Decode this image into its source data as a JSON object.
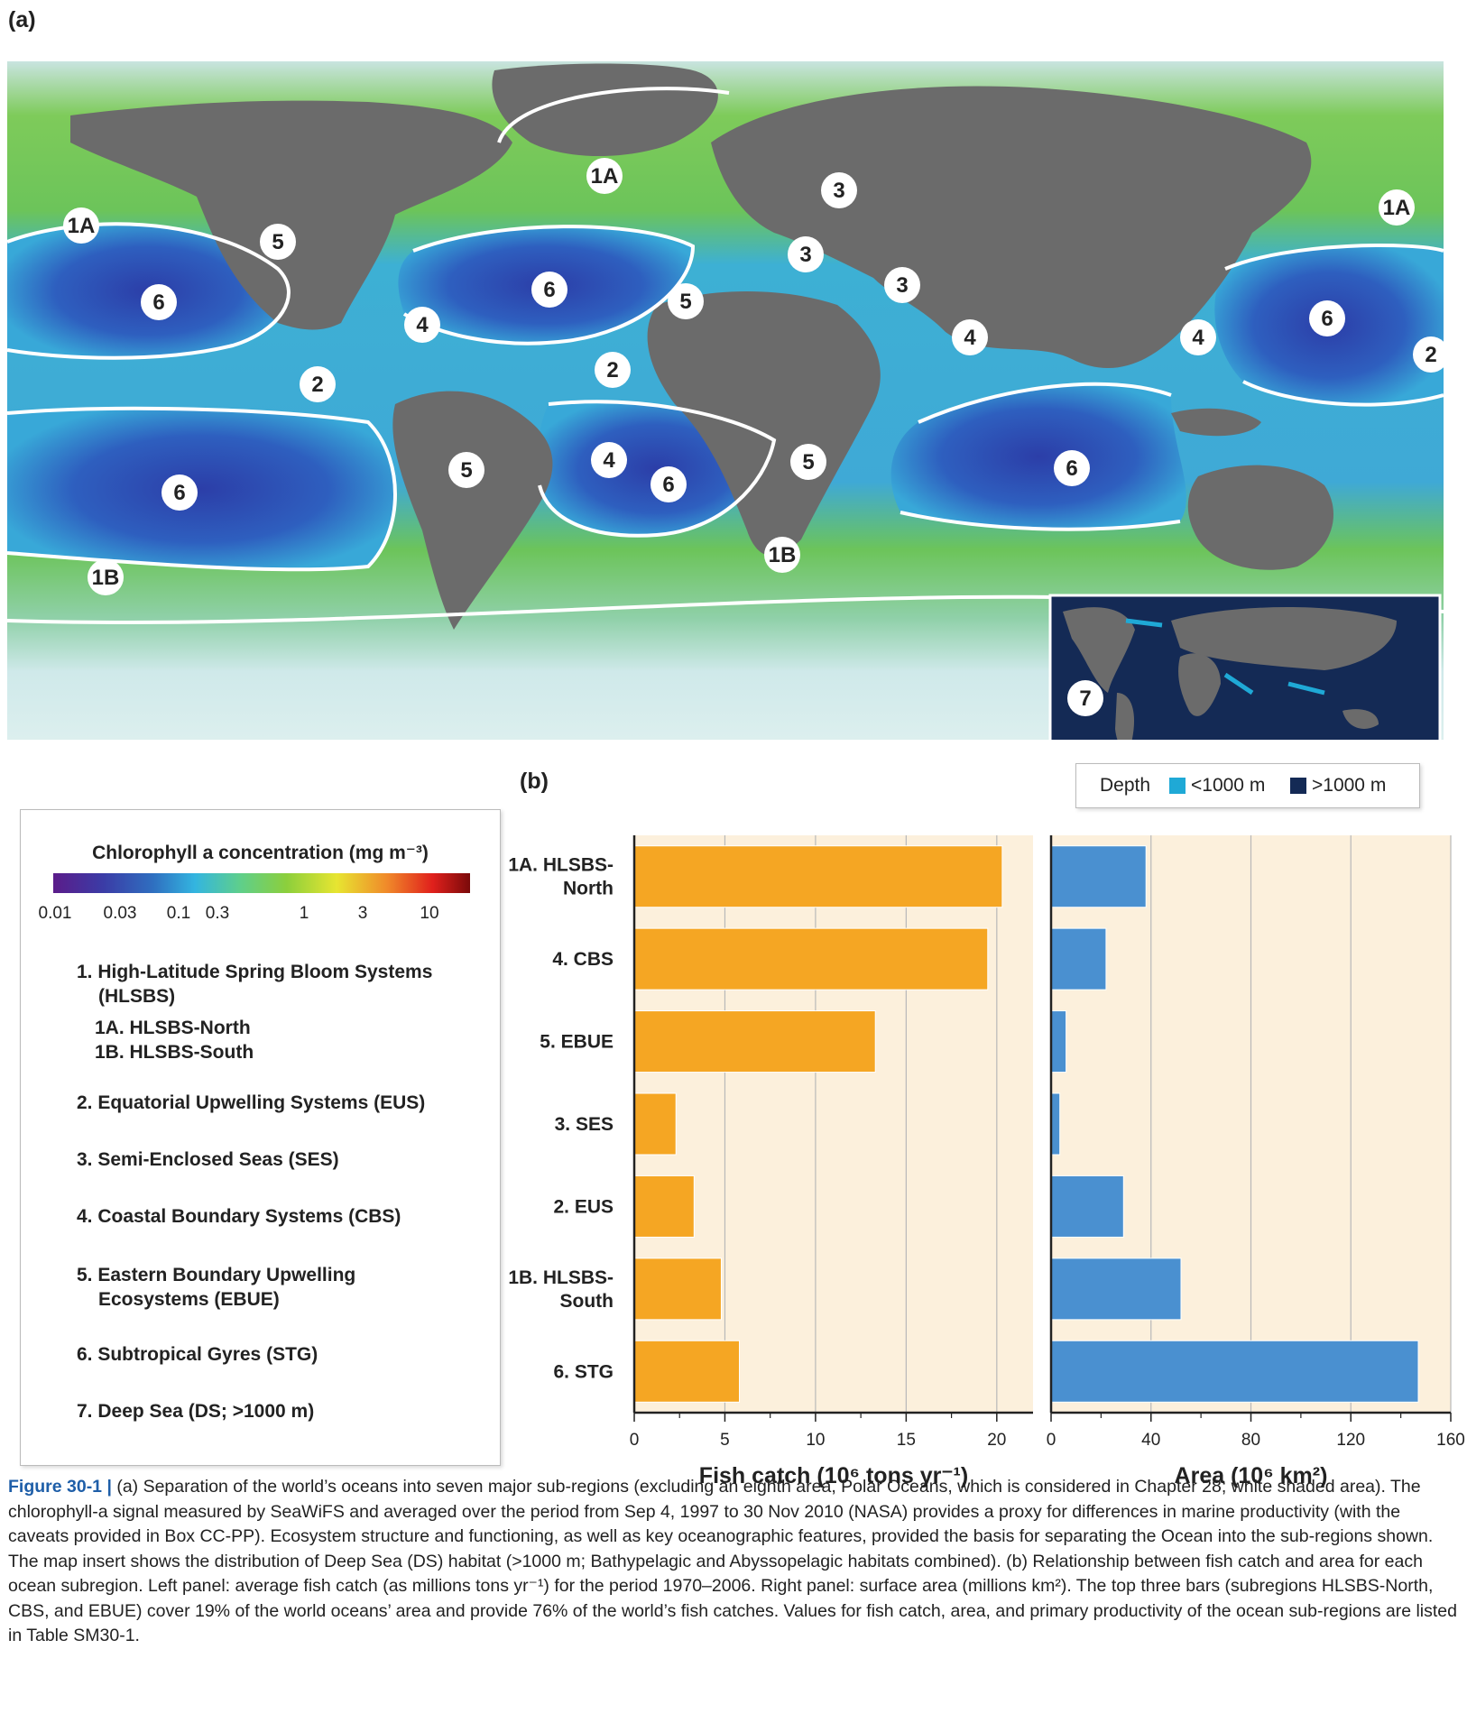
{
  "panel_a_label": "(a)",
  "panel_b_label": "(b)",
  "map": {
    "region_labels": [
      "1A",
      "1A",
      "1A",
      "5",
      "6",
      "4",
      "2",
      "6",
      "5",
      "4",
      "2",
      "3",
      "3",
      "3",
      "4",
      "6",
      "2",
      "4",
      "6",
      "5",
      "6",
      "6",
      "1B",
      "5",
      "1B"
    ],
    "inset": {
      "region_label": "7",
      "depth_label": "Depth",
      "legend_shallow": "<1000 m",
      "legend_deep": ">1000 m",
      "colors": {
        "shallow": "#1fa9d6",
        "deep": "#142a55"
      }
    },
    "colors": {
      "land": "#6b6b6b",
      "polar": "#d4ecec",
      "boundary": "#ffffff"
    }
  },
  "legend": {
    "title": "Chlorophyll a concentration (mg m⁻³)",
    "ticks": [
      "0.01",
      "0.03",
      "0.1",
      "0.3",
      "1",
      "3",
      "10"
    ],
    "categories": [
      {
        "line1": "1. High-Latitude Spring Bloom Systems",
        "line2": "(HLSBS)"
      },
      {
        "line1": "1A. HLSBS-North",
        "line2": "1B. HLSBS-South"
      },
      {
        "line1": "2. Equatorial Upwelling Systems (EUS)"
      },
      {
        "line1": "3. Semi-Enclosed Seas (SES)"
      },
      {
        "line1": "4. Coastal Boundary Systems (CBS)"
      },
      {
        "line1": "5. Eastern Boundary Upwelling",
        "line2": "Ecosystems (EBUE)"
      },
      {
        "line1": "6. Subtropical Gyres (STG)"
      },
      {
        "line1": "7. Deep Sea (DS; >1000 m)"
      }
    ]
  },
  "chart_data": [
    {
      "type": "bar",
      "orientation": "horizontal",
      "categories": [
        "1A. HLSBS-North",
        "4. CBS",
        "5. EBUE",
        "3. SES",
        "2. EUS",
        "1B. HLSBS-South",
        "6. STG"
      ],
      "category_display": [
        [
          "1A. HLSBS-",
          "North"
        ],
        [
          "4. CBS"
        ],
        [
          "5. EBUE"
        ],
        [
          "3. SES"
        ],
        [
          "2. EUS"
        ],
        [
          "1B. HLSBS-",
          "South"
        ],
        [
          "6. STG"
        ]
      ],
      "values": [
        20.3,
        19.5,
        13.3,
        2.3,
        3.3,
        4.8,
        5.8
      ],
      "xlabel": "Fish catch (10⁶ tons yr⁻¹)",
      "xlim": [
        0,
        22
      ],
      "xticks": [
        "0",
        "5",
        "10",
        "15",
        "20"
      ],
      "color": "#f5a623",
      "grid": true
    },
    {
      "type": "bar",
      "orientation": "horizontal",
      "categories": [
        "1A. HLSBS-North",
        "4. CBS",
        "5. EBUE",
        "3. SES",
        "2. EUS",
        "1B. HLSBS-South",
        "6. STG"
      ],
      "values": [
        38,
        22,
        6,
        3.5,
        29,
        52,
        147
      ],
      "xlabel": "Area (10⁶ km²)",
      "xlim": [
        0,
        160
      ],
      "xticks": [
        "0",
        "40",
        "80",
        "120",
        "160"
      ],
      "color": "#4a90d0",
      "grid": true
    }
  ],
  "caption": {
    "figure_label": "Figure 30-1 |",
    "text": " (a) Separation of the world’s oceans into seven major sub-regions (excluding an eighth area, Polar Oceans, which is considered in Chapter 28; white shaded area). The chlorophyll-a signal measured by SeaWiFS and averaged over the period from Sep 4, 1997 to 30 Nov 2010 (NASA) provides a proxy for differences in marine productivity (with the caveats provided in Box CC-PP). Ecosystem structure and functioning, as well as key oceanographic features, provided the basis for separating the Ocean into the sub-regions shown. The map insert shows the distribution of Deep Sea (DS) habitat (>1000 m; Bathypelagic and Abyssopelagic habitats combined). (b) Relationship between fish catch and area for each ocean subregion. Left panel: average fish catch (as millions tons yr⁻¹) for the period 1970–2006. Right panel: surface area (millions km²). The top three bars (subregions HLSBS-North, CBS, and EBUE) cover 19% of the world oceans’ area and provide 76% of the world’s fish catches. Values for fish catch, area, and primary productivity of the ocean sub-regions are listed in Table SM30-1."
  }
}
